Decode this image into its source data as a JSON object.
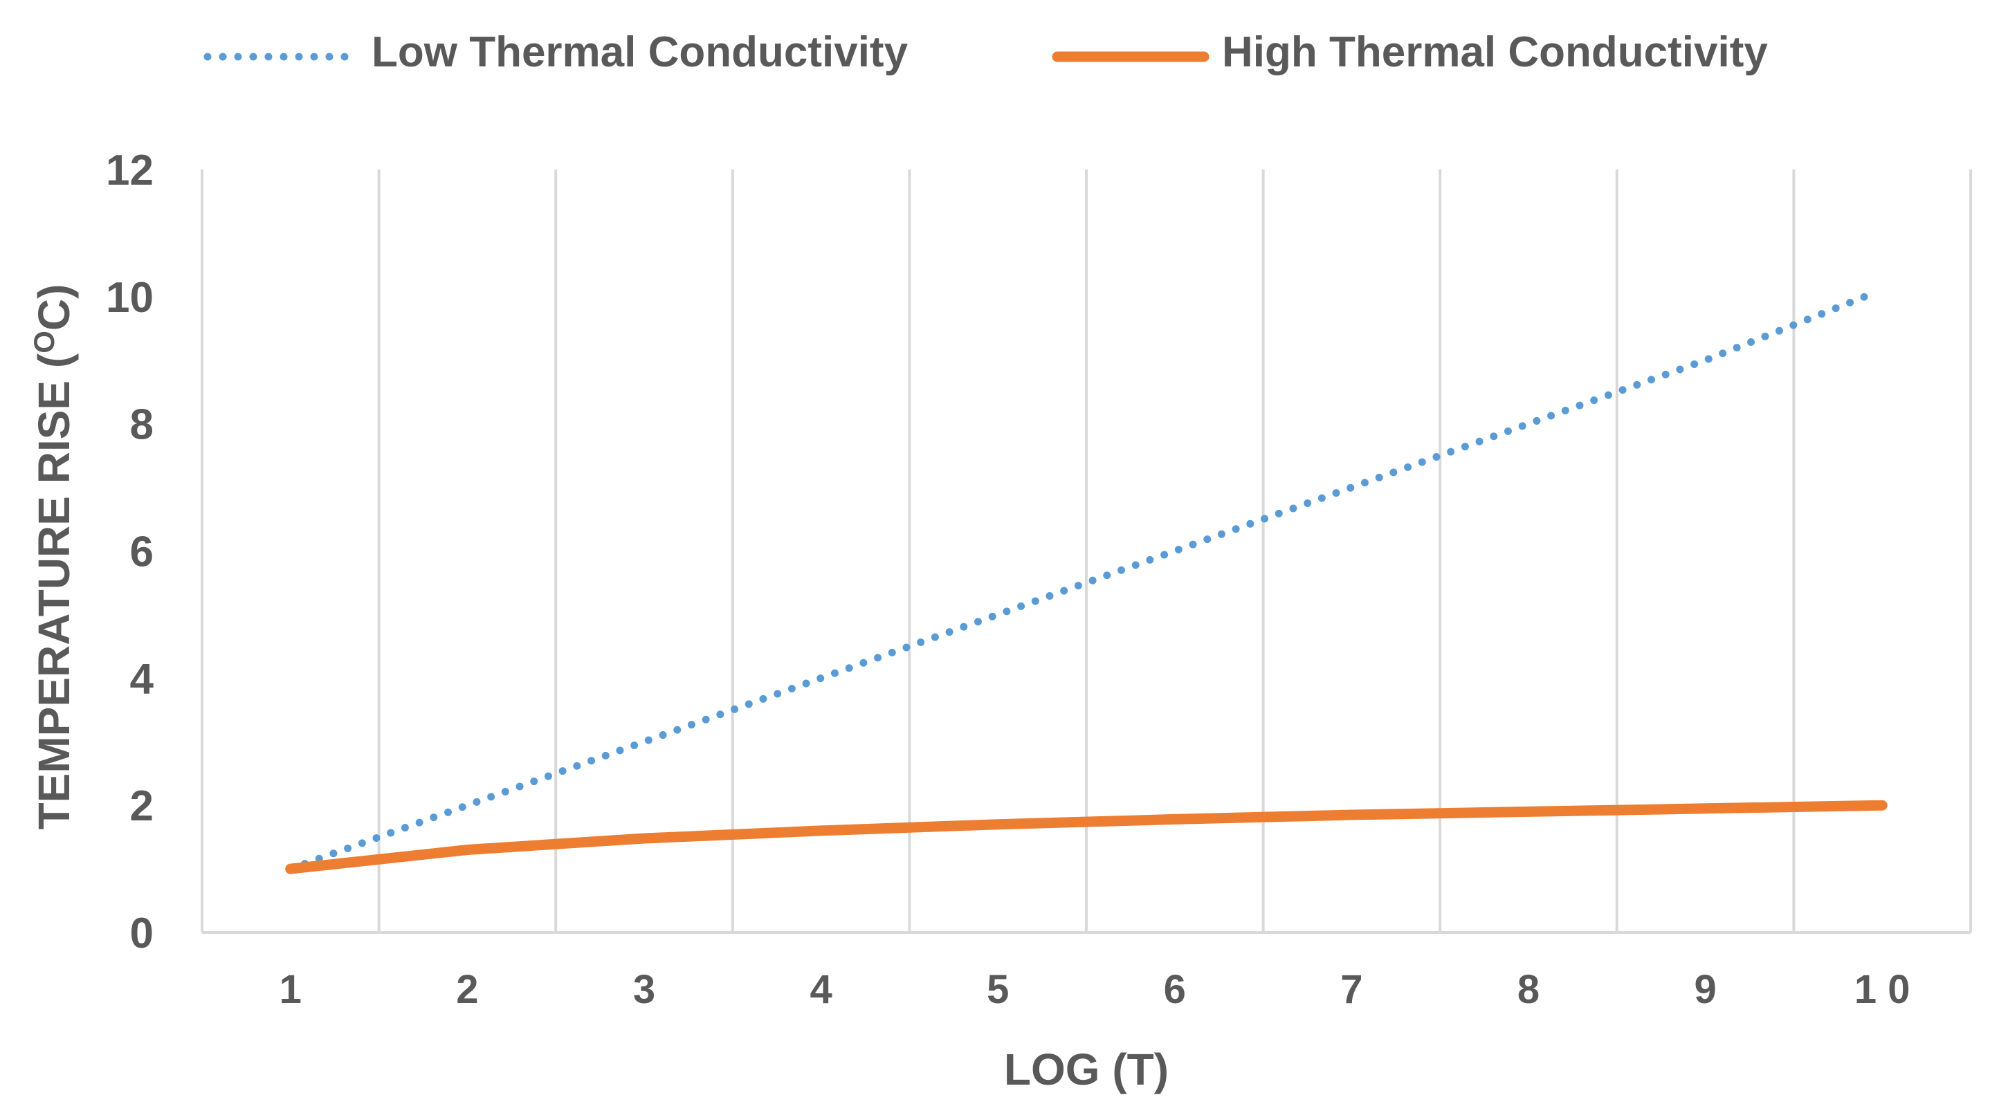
{
  "chart_data": {
    "type": "line",
    "title": "",
    "xlabel": "LOG (T)",
    "ylabel_main": "TEMPERATURE RISE (",
    "ylabel_super": "O",
    "ylabel_tail": "C)",
    "categories": [
      "1",
      "2",
      "3",
      "4",
      "5",
      "6",
      "7",
      "8",
      "9",
      "1 0"
    ],
    "x": [
      1,
      2,
      3,
      4,
      5,
      6,
      7,
      8,
      9,
      10
    ],
    "ylim": [
      0,
      12
    ],
    "yticks": [
      "0",
      "2",
      "4",
      "6",
      "8",
      "10",
      "12"
    ],
    "grid": "vertical",
    "legend_position": "top",
    "series": [
      {
        "name": "Low Thermal Conductivity",
        "style": "dotted",
        "color": "#5B9BD5",
        "values": [
          1.0,
          2.0,
          3.0,
          4.0,
          5.0,
          6.0,
          7.0,
          8.0,
          9.0,
          10.0
        ]
      },
      {
        "name": "High Thermal Conductivity",
        "style": "solid",
        "color": "#ED7D31",
        "values": [
          1.0,
          1.3,
          1.48,
          1.6,
          1.7,
          1.78,
          1.85,
          1.9,
          1.95,
          2.0
        ]
      }
    ]
  }
}
